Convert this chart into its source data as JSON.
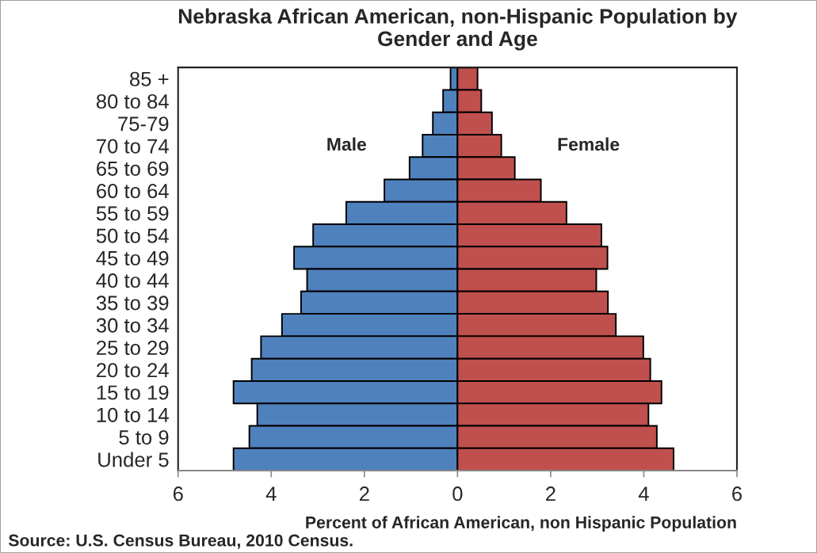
{
  "chart_data": {
    "type": "bar",
    "orientation": "horizontal",
    "stacked": true,
    "title": "Nebraska African American, non-Hispanic Population by\nGender and Age",
    "xlabel": "Percent of African American, non Hispanic Population",
    "annotations": [
      "Source: U.S. Census Bureau, 2010 Census."
    ],
    "categories": [
      "85 +",
      "80 to 84",
      "75-79",
      "70 to 74",
      "65 to 69",
      "60 to 64",
      "55 to 59",
      "50 to 54",
      "45 to 49",
      "40 to 44",
      "35 to 39",
      "30 to 34",
      "25 to 29",
      "20 to 24",
      "15 to 19",
      "10 to 14",
      "5 to 9",
      "Under 5"
    ],
    "series": [
      {
        "name": "Male",
        "color": "#4f81bd",
        "values": [
          -0.15,
          -0.31,
          -0.53,
          -0.75,
          -1.03,
          -1.57,
          -2.39,
          -3.1,
          -3.51,
          -3.23,
          -3.36,
          -3.77,
          -4.22,
          -4.42,
          -4.81,
          -4.3,
          -4.47,
          -4.81
        ]
      },
      {
        "name": "Female",
        "color": "#c0504d",
        "values": [
          0.43,
          0.51,
          0.74,
          0.94,
          1.23,
          1.79,
          2.34,
          3.09,
          3.22,
          2.98,
          3.23,
          3.4,
          3.99,
          4.14,
          4.38,
          4.1,
          4.28,
          4.64
        ]
      }
    ],
    "xlim": [
      -6,
      6
    ],
    "xticks": [
      {
        "value": -6,
        "label": "6"
      },
      {
        "value": -4,
        "label": "4"
      },
      {
        "value": -2,
        "label": "2"
      },
      0,
      2,
      4,
      6
    ]
  }
}
